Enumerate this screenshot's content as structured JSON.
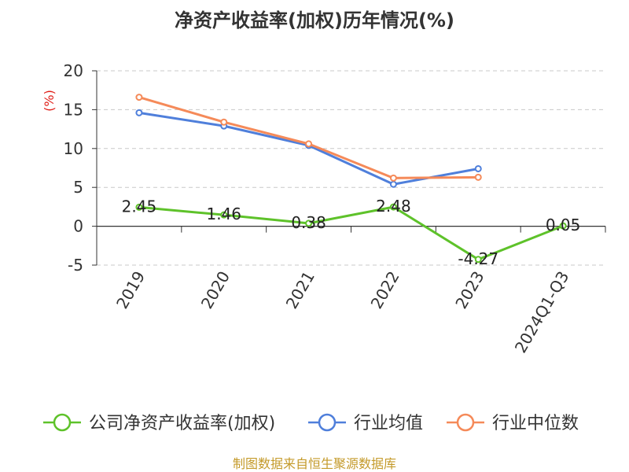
{
  "chart_data": {
    "type": "line",
    "title": "净资产收益率(加权)历年情况(%)",
    "ylabel": "(%)",
    "xlabel": "",
    "ylim": [
      -5,
      20
    ],
    "yticks": [
      20,
      15,
      10,
      5,
      0,
      -5
    ],
    "grid": true,
    "legend_position": "bottom",
    "categories": [
      "2019",
      "2020",
      "2021",
      "2022",
      "2023",
      "2024Q1-Q3"
    ],
    "series": [
      {
        "name": "公司净资产收益率(加权)",
        "color": "#5ec22a",
        "values": [
          2.45,
          1.46,
          0.38,
          2.48,
          -4.27,
          0.05
        ],
        "labels": [
          "2.45",
          "1.46",
          "0.38",
          "2.48",
          "-4.27",
          "0.05"
        ]
      },
      {
        "name": "行业均值",
        "color": "#4f7fdb",
        "values": [
          14.6,
          12.9,
          10.4,
          5.4,
          7.4,
          null
        ]
      },
      {
        "name": "行业中位数",
        "color": "#f58a59",
        "values": [
          16.6,
          13.4,
          10.6,
          6.2,
          6.3,
          null
        ]
      }
    ],
    "source": "制图数据来自恒生聚源数据库"
  }
}
